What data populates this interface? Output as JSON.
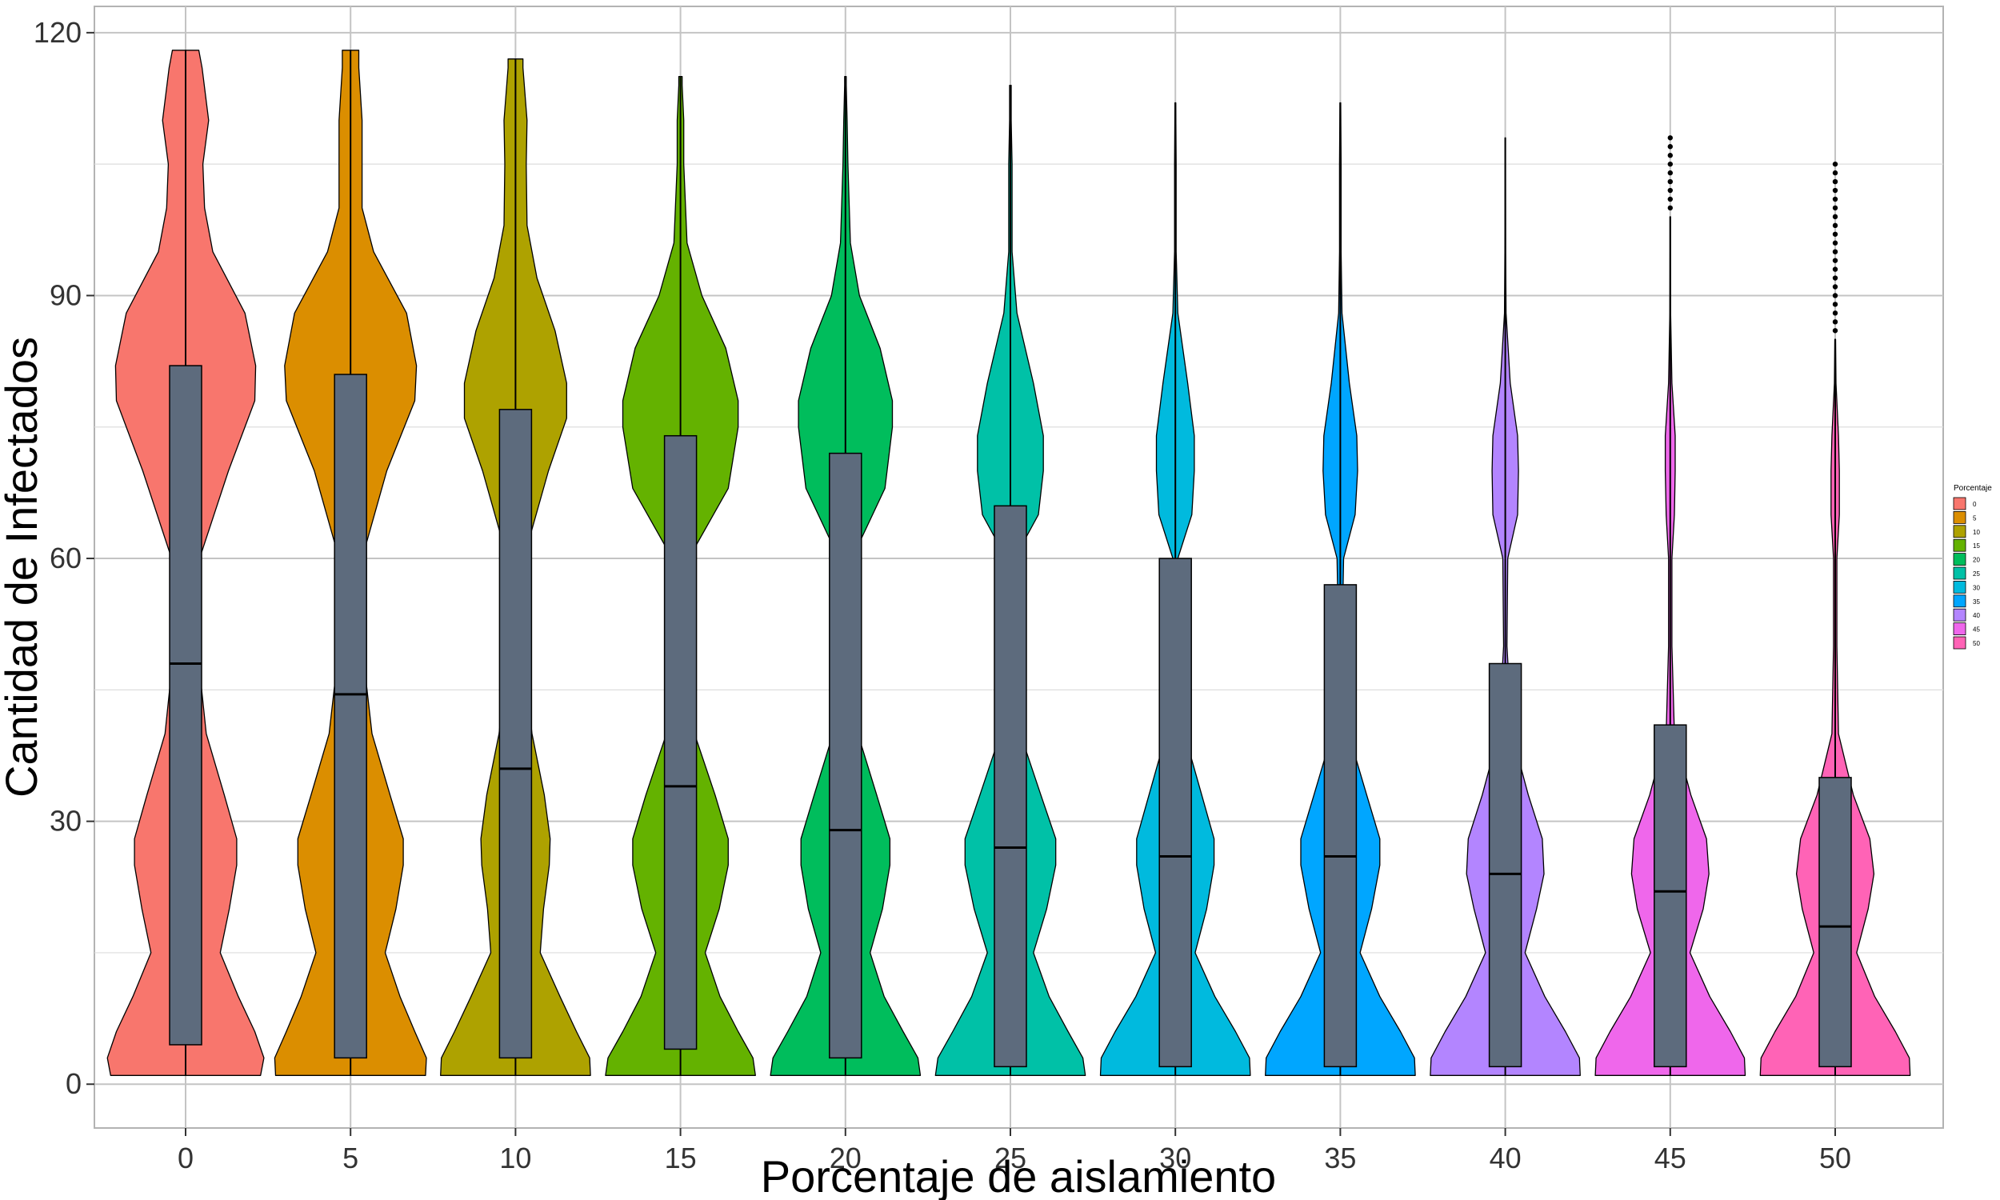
{
  "chart_data": {
    "type": "violin",
    "xlabel": "Porcentaje de aislamiento",
    "ylabel": "Cantidad de Infectados",
    "ylim": [
      -5,
      123
    ],
    "y_ticks": [
      0,
      30,
      60,
      90,
      120
    ],
    "y_tick_labels": [
      "0",
      "30",
      "60",
      "90",
      "120"
    ],
    "grid": true,
    "legend": {
      "title": "Porcentaje",
      "position": "right",
      "entries": [
        "0",
        "5",
        "10",
        "15",
        "20",
        "25",
        "30",
        "35",
        "40",
        "45",
        "50"
      ]
    },
    "categories": [
      "0",
      "5",
      "10",
      "15",
      "20",
      "25",
      "30",
      "35",
      "40",
      "45",
      "50"
    ],
    "colors": [
      "#F8766D",
      "#DB8E00",
      "#AEA200",
      "#64B200",
      "#00BD5C",
      "#00C1A7",
      "#00BADE",
      "#00A6FF",
      "#B385FF",
      "#EF67EB",
      "#FF63B6"
    ],
    "box_color": "#5d6b7d",
    "series": [
      {
        "category": "0",
        "min": 1,
        "max": 118,
        "q1": 4.5,
        "median": 48,
        "q3": 82,
        "outliers": [],
        "density": [
          [
            1,
            0.91
          ],
          [
            3,
            0.95
          ],
          [
            6,
            0.84
          ],
          [
            10,
            0.64
          ],
          [
            15,
            0.42
          ],
          [
            20,
            0.53
          ],
          [
            25,
            0.62
          ],
          [
            28,
            0.62
          ],
          [
            33,
            0.47
          ],
          [
            40,
            0.25
          ],
          [
            50,
            0.14
          ],
          [
            60,
            0.17
          ],
          [
            70,
            0.52
          ],
          [
            78,
            0.84
          ],
          [
            82,
            0.85
          ],
          [
            88,
            0.72
          ],
          [
            95,
            0.33
          ],
          [
            100,
            0.23
          ],
          [
            105,
            0.21
          ],
          [
            110,
            0.28
          ],
          [
            116,
            0.2
          ],
          [
            118,
            0.16
          ]
        ]
      },
      {
        "category": "5",
        "min": 1,
        "max": 118,
        "q1": 3,
        "median": 44.5,
        "q3": 81,
        "outliers": [],
        "density": [
          [
            1,
            0.91
          ],
          [
            3,
            0.92
          ],
          [
            6,
            0.78
          ],
          [
            10,
            0.6
          ],
          [
            15,
            0.42
          ],
          [
            20,
            0.55
          ],
          [
            25,
            0.64
          ],
          [
            28,
            0.64
          ],
          [
            33,
            0.48
          ],
          [
            40,
            0.26
          ],
          [
            50,
            0.14
          ],
          [
            60,
            0.14
          ],
          [
            70,
            0.44
          ],
          [
            78,
            0.78
          ],
          [
            82,
            0.8
          ],
          [
            88,
            0.68
          ],
          [
            95,
            0.28
          ],
          [
            100,
            0.14
          ],
          [
            105,
            0.14
          ],
          [
            110,
            0.14
          ],
          [
            116,
            0.1
          ],
          [
            118,
            0.1
          ]
        ]
      },
      {
        "category": "10",
        "min": 1,
        "max": 117,
        "q1": 3,
        "median": 36,
        "q3": 77,
        "outliers": [],
        "density": [
          [
            1,
            0.91
          ],
          [
            3,
            0.9
          ],
          [
            6,
            0.74
          ],
          [
            10,
            0.54
          ],
          [
            15,
            0.3
          ],
          [
            20,
            0.34
          ],
          [
            25,
            0.41
          ],
          [
            28,
            0.42
          ],
          [
            33,
            0.35
          ],
          [
            40,
            0.2
          ],
          [
            50,
            0.08
          ],
          [
            60,
            0.1
          ],
          [
            70,
            0.4
          ],
          [
            76,
            0.62
          ],
          [
            80,
            0.62
          ],
          [
            86,
            0.48
          ],
          [
            92,
            0.26
          ],
          [
            98,
            0.14
          ],
          [
            105,
            0.13
          ],
          [
            110,
            0.14
          ],
          [
            116,
            0.09
          ],
          [
            117,
            0.09
          ]
        ]
      },
      {
        "category": "15",
        "min": 1,
        "max": 115,
        "q1": 4,
        "median": 34,
        "q3": 74,
        "outliers": [],
        "density": [
          [
            1,
            0.91
          ],
          [
            3,
            0.88
          ],
          [
            6,
            0.7
          ],
          [
            10,
            0.48
          ],
          [
            15,
            0.3
          ],
          [
            20,
            0.47
          ],
          [
            25,
            0.58
          ],
          [
            28,
            0.58
          ],
          [
            33,
            0.42
          ],
          [
            40,
            0.17
          ],
          [
            50,
            0.04
          ],
          [
            60,
            0.1
          ],
          [
            68,
            0.58
          ],
          [
            75,
            0.7
          ],
          [
            78,
            0.7
          ],
          [
            84,
            0.55
          ],
          [
            90,
            0.26
          ],
          [
            96,
            0.08
          ],
          [
            105,
            0.04
          ],
          [
            110,
            0.04
          ],
          [
            114,
            0.02
          ],
          [
            115,
            0.02
          ]
        ]
      },
      {
        "category": "20",
        "min": 1,
        "max": 115,
        "q1": 3,
        "median": 29,
        "q3": 72,
        "outliers": [],
        "density": [
          [
            1,
            0.91
          ],
          [
            3,
            0.88
          ],
          [
            6,
            0.7
          ],
          [
            10,
            0.47
          ],
          [
            15,
            0.3
          ],
          [
            20,
            0.45
          ],
          [
            25,
            0.54
          ],
          [
            28,
            0.54
          ],
          [
            33,
            0.38
          ],
          [
            40,
            0.15
          ],
          [
            50,
            0.03
          ],
          [
            60,
            0.08
          ],
          [
            68,
            0.48
          ],
          [
            75,
            0.57
          ],
          [
            78,
            0.57
          ],
          [
            84,
            0.42
          ],
          [
            90,
            0.17
          ],
          [
            96,
            0.06
          ],
          [
            105,
            0.03
          ],
          [
            110,
            0.02
          ],
          [
            114,
            0.01
          ],
          [
            115,
            0.01
          ]
        ]
      },
      {
        "category": "25",
        "min": 1,
        "max": 114,
        "q1": 2,
        "median": 27,
        "q3": 66,
        "outliers": [],
        "density": [
          [
            1,
            0.91
          ],
          [
            3,
            0.88
          ],
          [
            6,
            0.7
          ],
          [
            10,
            0.47
          ],
          [
            15,
            0.28
          ],
          [
            20,
            0.44
          ],
          [
            25,
            0.55
          ],
          [
            28,
            0.55
          ],
          [
            33,
            0.37
          ],
          [
            40,
            0.12
          ],
          [
            50,
            0.03
          ],
          [
            60,
            0.05
          ],
          [
            65,
            0.34
          ],
          [
            70,
            0.4
          ],
          [
            74,
            0.4
          ],
          [
            80,
            0.28
          ],
          [
            88,
            0.08
          ],
          [
            95,
            0.02
          ],
          [
            105,
            0.02
          ],
          [
            110,
            0.01
          ],
          [
            114,
            0.01
          ]
        ]
      },
      {
        "category": "30",
        "min": 1,
        "max": 112,
        "q1": 2,
        "median": 26,
        "q3": 60,
        "outliers": [],
        "density": [
          [
            1,
            0.91
          ],
          [
            3,
            0.9
          ],
          [
            6,
            0.73
          ],
          [
            10,
            0.48
          ],
          [
            15,
            0.24
          ],
          [
            20,
            0.38
          ],
          [
            25,
            0.47
          ],
          [
            28,
            0.47
          ],
          [
            33,
            0.32
          ],
          [
            40,
            0.11
          ],
          [
            50,
            0.02
          ],
          [
            60,
            0.03
          ],
          [
            65,
            0.2
          ],
          [
            70,
            0.23
          ],
          [
            74,
            0.23
          ],
          [
            80,
            0.15
          ],
          [
            88,
            0.03
          ],
          [
            95,
            0.01
          ],
          [
            105,
            0.01
          ],
          [
            112,
            0.005
          ]
        ]
      },
      {
        "category": "35",
        "min": 1,
        "max": 112,
        "q1": 2,
        "median": 26,
        "q3": 57,
        "outliers": [],
        "density": [
          [
            1,
            0.91
          ],
          [
            3,
            0.9
          ],
          [
            6,
            0.73
          ],
          [
            10,
            0.48
          ],
          [
            15,
            0.24
          ],
          [
            20,
            0.38
          ],
          [
            25,
            0.48
          ],
          [
            28,
            0.48
          ],
          [
            33,
            0.32
          ],
          [
            40,
            0.1
          ],
          [
            50,
            0.02
          ],
          [
            60,
            0.04
          ],
          [
            65,
            0.18
          ],
          [
            70,
            0.21
          ],
          [
            74,
            0.2
          ],
          [
            80,
            0.11
          ],
          [
            88,
            0.02
          ],
          [
            95,
            0.01
          ],
          [
            105,
            0.01
          ],
          [
            112,
            0.005
          ]
        ]
      },
      {
        "category": "40",
        "min": 1,
        "max": 108,
        "q1": 2,
        "median": 24,
        "q3": 48,
        "outliers": [],
        "density": [
          [
            1,
            0.91
          ],
          [
            3,
            0.9
          ],
          [
            6,
            0.73
          ],
          [
            10,
            0.48
          ],
          [
            15,
            0.24
          ],
          [
            20,
            0.38
          ],
          [
            24,
            0.47
          ],
          [
            28,
            0.45
          ],
          [
            33,
            0.28
          ],
          [
            40,
            0.08
          ],
          [
            50,
            0.02
          ],
          [
            60,
            0.03
          ],
          [
            65,
            0.15
          ],
          [
            70,
            0.16
          ],
          [
            74,
            0.15
          ],
          [
            80,
            0.06
          ],
          [
            88,
            0.01
          ],
          [
            95,
            0.005
          ],
          [
            105,
            0.003
          ],
          [
            108,
            0.003
          ]
        ]
      },
      {
        "category": "45",
        "min": 1,
        "max": 99,
        "q1": 2,
        "median": 22,
        "q3": 41,
        "outliers": [
          100,
          101,
          102,
          103,
          104,
          105,
          106,
          107,
          108
        ],
        "density": [
          [
            1,
            0.91
          ],
          [
            3,
            0.9
          ],
          [
            6,
            0.73
          ],
          [
            10,
            0.48
          ],
          [
            15,
            0.24
          ],
          [
            20,
            0.4
          ],
          [
            24,
            0.47
          ],
          [
            28,
            0.44
          ],
          [
            33,
            0.25
          ],
          [
            40,
            0.05
          ],
          [
            50,
            0.02
          ],
          [
            60,
            0.02
          ],
          [
            65,
            0.05
          ],
          [
            70,
            0.06
          ],
          [
            74,
            0.06
          ],
          [
            80,
            0.02
          ],
          [
            88,
            0.005
          ],
          [
            95,
            0.003
          ],
          [
            99,
            0.003
          ]
        ]
      },
      {
        "category": "50",
        "min": 1,
        "max": 85,
        "q1": 2,
        "median": 18,
        "q3": 35,
        "outliers": [
          86,
          87,
          88,
          89,
          90,
          91,
          92,
          93,
          94,
          95,
          96,
          97,
          98,
          99,
          100,
          101,
          102,
          103,
          104,
          105
        ],
        "density": [
          [
            1,
            0.91
          ],
          [
            3,
            0.9
          ],
          [
            6,
            0.73
          ],
          [
            10,
            0.48
          ],
          [
            15,
            0.26
          ],
          [
            20,
            0.4
          ],
          [
            24,
            0.47
          ],
          [
            28,
            0.42
          ],
          [
            33,
            0.22
          ],
          [
            40,
            0.04
          ],
          [
            50,
            0.02
          ],
          [
            60,
            0.02
          ],
          [
            65,
            0.05
          ],
          [
            70,
            0.05
          ],
          [
            74,
            0.04
          ],
          [
            80,
            0.01
          ],
          [
            85,
            0.005
          ]
        ]
      }
    ]
  }
}
